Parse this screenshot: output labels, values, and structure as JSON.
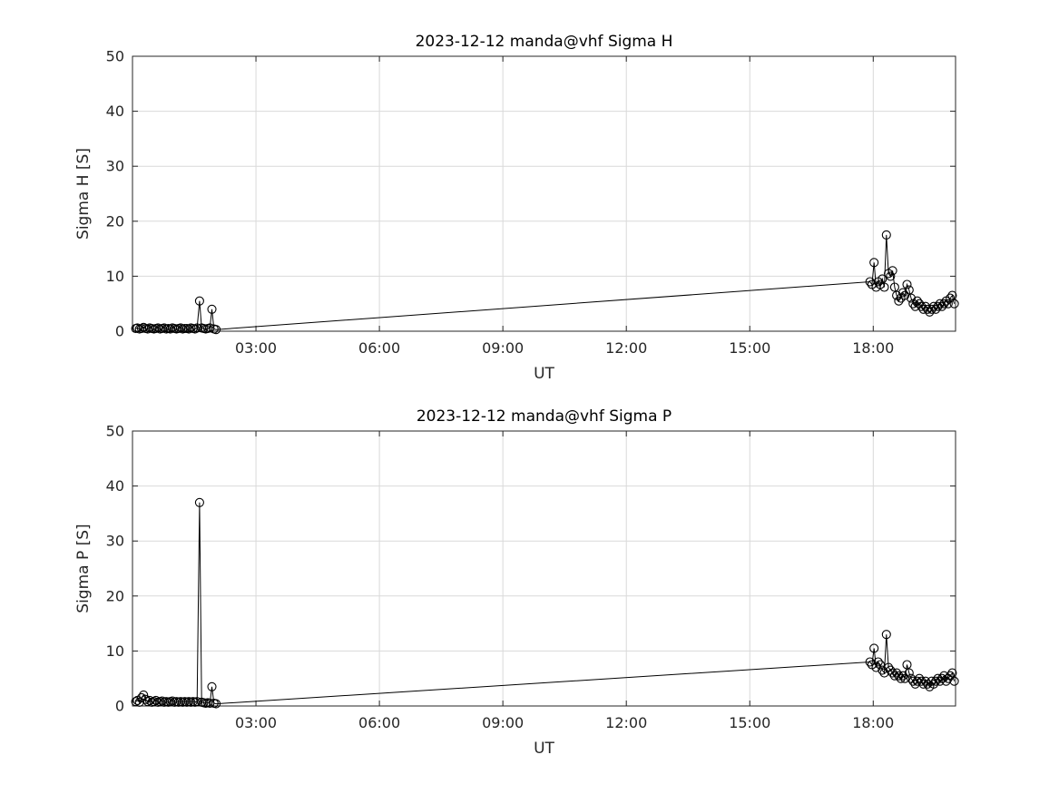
{
  "figure": {
    "background": "#ffffff",
    "axes_color": "#262626",
    "grid_color": "#d9d9d9",
    "data_color": "#000000"
  },
  "chart_data": [
    {
      "type": "scatter",
      "title": "2023-12-12  manda@vhf Sigma H",
      "xlabel": "UT",
      "ylabel": "Sigma H [S]",
      "xlim": [
        0,
        20
      ],
      "ylim": [
        0,
        50
      ],
      "xticks": [
        3,
        6,
        9,
        12,
        15,
        18
      ],
      "xtick_labels": [
        "03:00",
        "06:00",
        "09:00",
        "12:00",
        "15:00",
        "18:00"
      ],
      "yticks": [
        0,
        10,
        20,
        30,
        40,
        50
      ],
      "ytick_labels": [
        "0",
        "10",
        "20",
        "30",
        "40",
        "50"
      ],
      "grid": true,
      "legend": "none",
      "marker": "circle-open",
      "line": true,
      "points": [
        [
          0.08,
          0.5
        ],
        [
          0.12,
          0.6
        ],
        [
          0.17,
          0.4
        ],
        [
          0.22,
          0.5
        ],
        [
          0.27,
          0.7
        ],
        [
          0.32,
          0.5
        ],
        [
          0.37,
          0.4
        ],
        [
          0.42,
          0.6
        ],
        [
          0.47,
          0.5
        ],
        [
          0.52,
          0.4
        ],
        [
          0.57,
          0.5
        ],
        [
          0.62,
          0.6
        ],
        [
          0.67,
          0.4
        ],
        [
          0.72,
          0.5
        ],
        [
          0.77,
          0.6
        ],
        [
          0.82,
          0.4
        ],
        [
          0.87,
          0.5
        ],
        [
          0.92,
          0.4
        ],
        [
          0.97,
          0.6
        ],
        [
          1.02,
          0.5
        ],
        [
          1.07,
          0.4
        ],
        [
          1.12,
          0.5
        ],
        [
          1.17,
          0.6
        ],
        [
          1.22,
          0.4
        ],
        [
          1.27,
          0.5
        ],
        [
          1.32,
          0.5
        ],
        [
          1.37,
          0.4
        ],
        [
          1.42,
          0.6
        ],
        [
          1.47,
          0.5
        ],
        [
          1.52,
          0.4
        ],
        [
          1.57,
          0.6
        ],
        [
          1.63,
          5.5
        ],
        [
          1.68,
          0.6
        ],
        [
          1.73,
          0.5
        ],
        [
          1.78,
          0.4
        ],
        [
          1.83,
          0.5
        ],
        [
          1.88,
          0.6
        ],
        [
          1.93,
          4.0
        ],
        [
          1.98,
          0.4
        ],
        [
          2.03,
          0.3
        ],
        [
          17.92,
          9.0
        ],
        [
          17.97,
          8.5
        ],
        [
          18.02,
          12.5
        ],
        [
          18.07,
          8.0
        ],
        [
          18.12,
          9.0
        ],
        [
          18.17,
          8.5
        ],
        [
          18.22,
          9.5
        ],
        [
          18.27,
          8.0
        ],
        [
          18.32,
          17.5
        ],
        [
          18.37,
          10.5
        ],
        [
          18.42,
          10.0
        ],
        [
          18.47,
          11.0
        ],
        [
          18.52,
          8.0
        ],
        [
          18.57,
          6.5
        ],
        [
          18.62,
          5.5
        ],
        [
          18.67,
          6.0
        ],
        [
          18.72,
          7.0
        ],
        [
          18.77,
          6.5
        ],
        [
          18.82,
          8.5
        ],
        [
          18.87,
          7.5
        ],
        [
          18.92,
          6.0
        ],
        [
          18.97,
          5.0
        ],
        [
          19.02,
          4.5
        ],
        [
          19.07,
          5.5
        ],
        [
          19.12,
          5.0
        ],
        [
          19.17,
          4.5
        ],
        [
          19.22,
          4.0
        ],
        [
          19.27,
          4.5
        ],
        [
          19.32,
          4.0
        ],
        [
          19.37,
          3.5
        ],
        [
          19.42,
          4.0
        ],
        [
          19.47,
          4.5
        ],
        [
          19.52,
          4.0
        ],
        [
          19.57,
          4.5
        ],
        [
          19.62,
          5.0
        ],
        [
          19.67,
          4.5
        ],
        [
          19.72,
          5.0
        ],
        [
          19.77,
          5.5
        ],
        [
          19.82,
          5.0
        ],
        [
          19.87,
          6.0
        ],
        [
          19.92,
          6.5
        ],
        [
          19.97,
          5.0
        ]
      ]
    },
    {
      "type": "scatter",
      "title": "2023-12-12  manda@vhf Sigma P",
      "xlabel": "UT",
      "ylabel": "Sigma P [S]",
      "xlim": [
        0,
        20
      ],
      "ylim": [
        0,
        50
      ],
      "xticks": [
        3,
        6,
        9,
        12,
        15,
        18
      ],
      "xtick_labels": [
        "03:00",
        "06:00",
        "09:00",
        "12:00",
        "15:00",
        "18:00"
      ],
      "yticks": [
        0,
        10,
        20,
        30,
        40,
        50
      ],
      "ytick_labels": [
        "0",
        "10",
        "20",
        "30",
        "40",
        "50"
      ],
      "grid": true,
      "legend": "none",
      "marker": "circle-open",
      "line": true,
      "points": [
        [
          0.08,
          0.8
        ],
        [
          0.12,
          1.0
        ],
        [
          0.17,
          0.7
        ],
        [
          0.22,
          1.5
        ],
        [
          0.27,
          2.0
        ],
        [
          0.32,
          1.2
        ],
        [
          0.37,
          0.8
        ],
        [
          0.42,
          1.0
        ],
        [
          0.47,
          0.7
        ],
        [
          0.52,
          0.8
        ],
        [
          0.57,
          1.0
        ],
        [
          0.62,
          0.7
        ],
        [
          0.67,
          0.8
        ],
        [
          0.72,
          0.9
        ],
        [
          0.77,
          0.7
        ],
        [
          0.82,
          0.8
        ],
        [
          0.87,
          0.7
        ],
        [
          0.92,
          0.8
        ],
        [
          0.97,
          0.9
        ],
        [
          1.02,
          0.7
        ],
        [
          1.07,
          0.8
        ],
        [
          1.12,
          0.7
        ],
        [
          1.17,
          0.8
        ],
        [
          1.22,
          0.7
        ],
        [
          1.27,
          0.8
        ],
        [
          1.32,
          0.7
        ],
        [
          1.37,
          0.8
        ],
        [
          1.42,
          0.7
        ],
        [
          1.47,
          0.8
        ],
        [
          1.52,
          0.7
        ],
        [
          1.57,
          0.8
        ],
        [
          1.63,
          37.0
        ],
        [
          1.68,
          0.7
        ],
        [
          1.73,
          0.6
        ],
        [
          1.78,
          0.5
        ],
        [
          1.83,
          0.6
        ],
        [
          1.88,
          0.5
        ],
        [
          1.93,
          3.5
        ],
        [
          1.98,
          0.5
        ],
        [
          2.03,
          0.4
        ],
        [
          17.92,
          8.0
        ],
        [
          17.97,
          7.5
        ],
        [
          18.02,
          10.5
        ],
        [
          18.07,
          7.0
        ],
        [
          18.12,
          8.0
        ],
        [
          18.17,
          7.5
        ],
        [
          18.22,
          6.5
        ],
        [
          18.27,
          6.0
        ],
        [
          18.32,
          13.0
        ],
        [
          18.37,
          7.0
        ],
        [
          18.42,
          6.5
        ],
        [
          18.47,
          6.0
        ],
        [
          18.52,
          5.5
        ],
        [
          18.57,
          6.0
        ],
        [
          18.62,
          5.5
        ],
        [
          18.67,
          5.0
        ],
        [
          18.72,
          5.5
        ],
        [
          18.77,
          5.0
        ],
        [
          18.82,
          7.5
        ],
        [
          18.87,
          6.0
        ],
        [
          18.92,
          5.0
        ],
        [
          18.97,
          4.5
        ],
        [
          19.02,
          4.0
        ],
        [
          19.07,
          4.5
        ],
        [
          19.12,
          5.0
        ],
        [
          19.17,
          4.5
        ],
        [
          19.22,
          4.0
        ],
        [
          19.27,
          4.5
        ],
        [
          19.32,
          4.0
        ],
        [
          19.37,
          3.5
        ],
        [
          19.42,
          4.5
        ],
        [
          19.47,
          4.0
        ],
        [
          19.52,
          4.5
        ],
        [
          19.57,
          5.0
        ],
        [
          19.62,
          4.5
        ],
        [
          19.67,
          5.0
        ],
        [
          19.72,
          5.5
        ],
        [
          19.77,
          4.5
        ],
        [
          19.82,
          5.0
        ],
        [
          19.87,
          5.5
        ],
        [
          19.92,
          6.0
        ],
        [
          19.97,
          4.5
        ]
      ]
    }
  ]
}
